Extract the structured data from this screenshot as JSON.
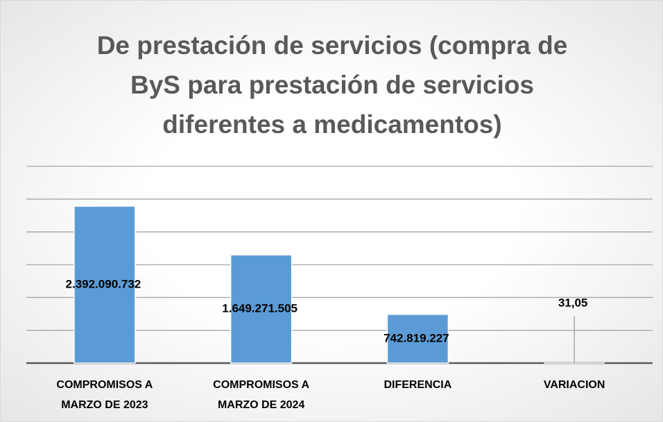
{
  "chart_data": {
    "type": "bar",
    "title": "De prestación de servicios (compra de ByS para prestación de servicios diferentes a medicamentos)",
    "categories": [
      "COMPROMISOS A MARZO DE  2023",
      "COMPROMISOS A MARZO DE 2024",
      "DIFERENCIA",
      "VARIACION"
    ],
    "values": [
      2392090732,
      1649271505,
      742819227,
      31.05
    ],
    "value_labels": [
      "2.392.090.732",
      "1.649.271.505",
      "742.819.227",
      "31,05"
    ],
    "color": "#5b9bd5",
    "ylim": [
      0,
      3000000000
    ],
    "yticks": [
      0,
      500000000,
      1000000000,
      1500000000,
      2000000000,
      2500000000,
      3000000000
    ],
    "grid": true
  }
}
